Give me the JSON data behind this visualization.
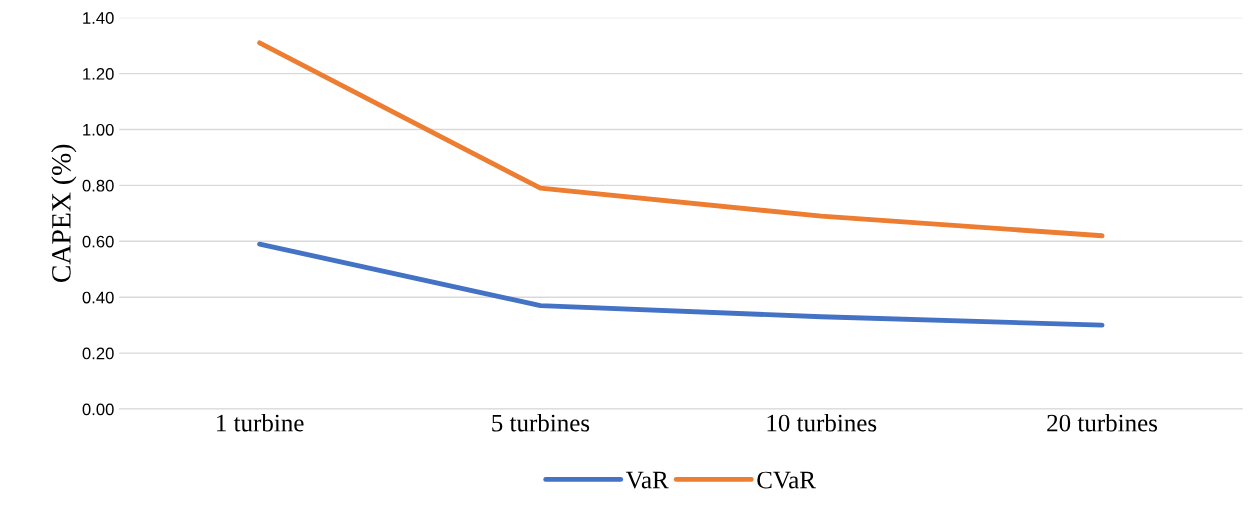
{
  "chart_data": {
    "type": "line",
    "ylabel": "CAPEX (%)",
    "categories": [
      "1 turbine",
      "5 turbines",
      "10 turbines",
      "20 turbines"
    ],
    "series": [
      {
        "name": "VaR",
        "color": "#4472c4",
        "values": [
          0.59,
          0.37,
          0.33,
          0.3
        ]
      },
      {
        "name": "CVaR",
        "color": "#ed7d31",
        "values": [
          1.31,
          0.79,
          0.69,
          0.62
        ]
      }
    ],
    "ylim": [
      0,
      1.4
    ],
    "yticks": [
      {
        "value": 0,
        "label": "0.00"
      },
      {
        "value": 0.2,
        "label": "0.20"
      },
      {
        "value": 0.4,
        "label": "0.40"
      },
      {
        "value": 0.6,
        "label": "0.60"
      },
      {
        "value": 0.8,
        "label": "0.80"
      },
      {
        "value": 1.0,
        "label": "1.00"
      },
      {
        "value": 1.2,
        "label": "1.20"
      },
      {
        "value": 1.4,
        "label": "1.40"
      }
    ],
    "grid": "y",
    "legend": "bottom",
    "marker": "none",
    "line_style": "solid"
  }
}
